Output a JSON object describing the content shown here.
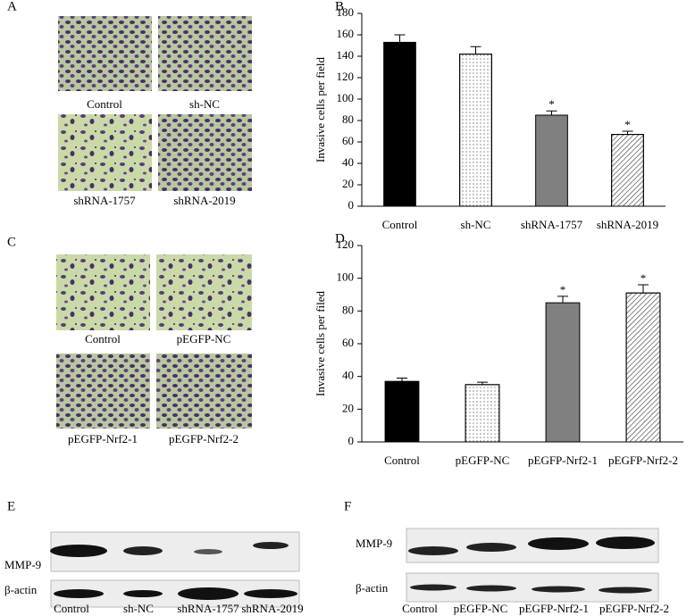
{
  "panels": {
    "A": {
      "label": "A",
      "captions": [
        "Control",
        "sh-NC",
        "shRNA-1757",
        "shRNA-2019"
      ]
    },
    "C": {
      "label": "C",
      "captions": [
        "Control",
        "pEGFP-NC",
        "pEGFP-Nrf2-1",
        "pEGFP-Nrf2-2"
      ]
    },
    "E": {
      "label": "E",
      "rows": [
        "MMP-9",
        "β-actin"
      ],
      "lanes": [
        "Control",
        "sh-NC",
        "shRNA-1757",
        "shRNA-2019"
      ]
    },
    "F": {
      "label": "F",
      "rows": [
        "MMP-9",
        "β-actin"
      ],
      "lanes": [
        "Control",
        "pEGFP-NC",
        "pEGFP-Nrf2-1",
        "pEGFP-Nrf2-2"
      ]
    }
  },
  "chart_data": [
    {
      "type": "bar",
      "panel_label": "B",
      "ylabel": "Invasive cells per field",
      "categories": [
        "Control",
        "sh-NC",
        "shRNA-1757",
        "shRNA-2019"
      ],
      "values": [
        153,
        142,
        85,
        67
      ],
      "errors": [
        7,
        7,
        4,
        3
      ],
      "annotations": [
        null,
        null,
        "*",
        "*"
      ],
      "colors": [
        "#000000",
        "#ffffff",
        "#808080",
        "#ffffff"
      ],
      "patterns": [
        null,
        "dots",
        null,
        "hatch"
      ],
      "ylim": [
        0,
        180
      ],
      "yticks": [
        0,
        20,
        40,
        60,
        80,
        100,
        120,
        140,
        160,
        180
      ]
    },
    {
      "type": "bar",
      "panel_label": "D",
      "ylabel": "Invasive cells per filed",
      "categories": [
        "Control",
        "pEGFP-NC",
        "pEGFP-Nrf2-1",
        "pEGFP-Nrf2-2"
      ],
      "values": [
        37,
        35,
        85,
        91
      ],
      "errors": [
        2,
        1.5,
        4,
        5
      ],
      "annotations": [
        null,
        null,
        "*",
        "*"
      ],
      "colors": [
        "#000000",
        "#ffffff",
        "#808080",
        "#ffffff"
      ],
      "patterns": [
        null,
        "dots",
        null,
        "hatch"
      ],
      "ylim": [
        0,
        120
      ],
      "yticks": [
        0,
        20,
        40,
        60,
        80,
        100,
        120
      ]
    }
  ]
}
